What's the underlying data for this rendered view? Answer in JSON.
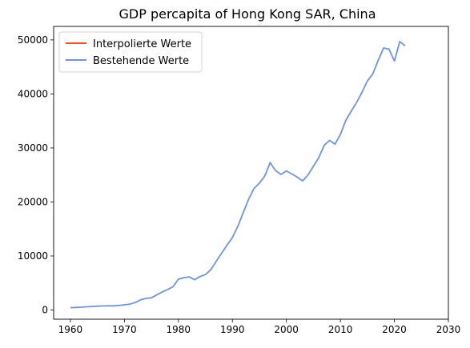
{
  "chart_data": {
    "type": "line",
    "title": "GDP percapita of Hong Kong SAR, China",
    "xlabel": "",
    "ylabel": "",
    "xlim": [
      1956.9,
      2030
    ],
    "ylim": [
      -1700,
      52500
    ],
    "xticks": [
      1960,
      1970,
      1980,
      1990,
      2000,
      2010,
      2020,
      2030
    ],
    "yticks": [
      0,
      10000,
      20000,
      30000,
      40000,
      50000
    ],
    "grid": false,
    "legend": "upper-left",
    "series": [
      {
        "name": "Interpolierte Werte",
        "color": "#e8541e",
        "x": [],
        "y": []
      },
      {
        "name": "Bestehende Werte",
        "color": "#6f94dc",
        "x": [
          1960,
          1961,
          1962,
          1963,
          1964,
          1965,
          1966,
          1967,
          1968,
          1969,
          1970,
          1971,
          1972,
          1973,
          1974,
          1975,
          1976,
          1977,
          1978,
          1979,
          1980,
          1981,
          1982,
          1983,
          1984,
          1985,
          1986,
          1987,
          1988,
          1989,
          1990,
          1991,
          1992,
          1993,
          1994,
          1995,
          1996,
          1997,
          1998,
          1999,
          2000,
          2001,
          2002,
          2003,
          2004,
          2005,
          2006,
          2007,
          2008,
          2009,
          2010,
          2011,
          2012,
          2013,
          2014,
          2015,
          2016,
          2017,
          2018,
          2019,
          2020,
          2021,
          2022
        ],
        "y": [
          430,
          470,
          520,
          590,
          650,
          710,
          740,
          770,
          780,
          840,
          960,
          1090,
          1380,
          1880,
          2150,
          2250,
          2800,
          3350,
          3800,
          4300,
          5700,
          5990,
          6130,
          5600,
          6200,
          6550,
          7450,
          9000,
          10500,
          12000,
          13400,
          15500,
          18000,
          20500,
          22500,
          23500,
          24800,
          27300,
          25800,
          25100,
          25750,
          25200,
          24600,
          23900,
          25000,
          26600,
          28200,
          30500,
          31400,
          30700,
          32500,
          35100,
          36800,
          38400,
          40300,
          42400,
          43700,
          46200,
          48500,
          48300,
          46100,
          49700,
          48900
        ]
      }
    ]
  }
}
